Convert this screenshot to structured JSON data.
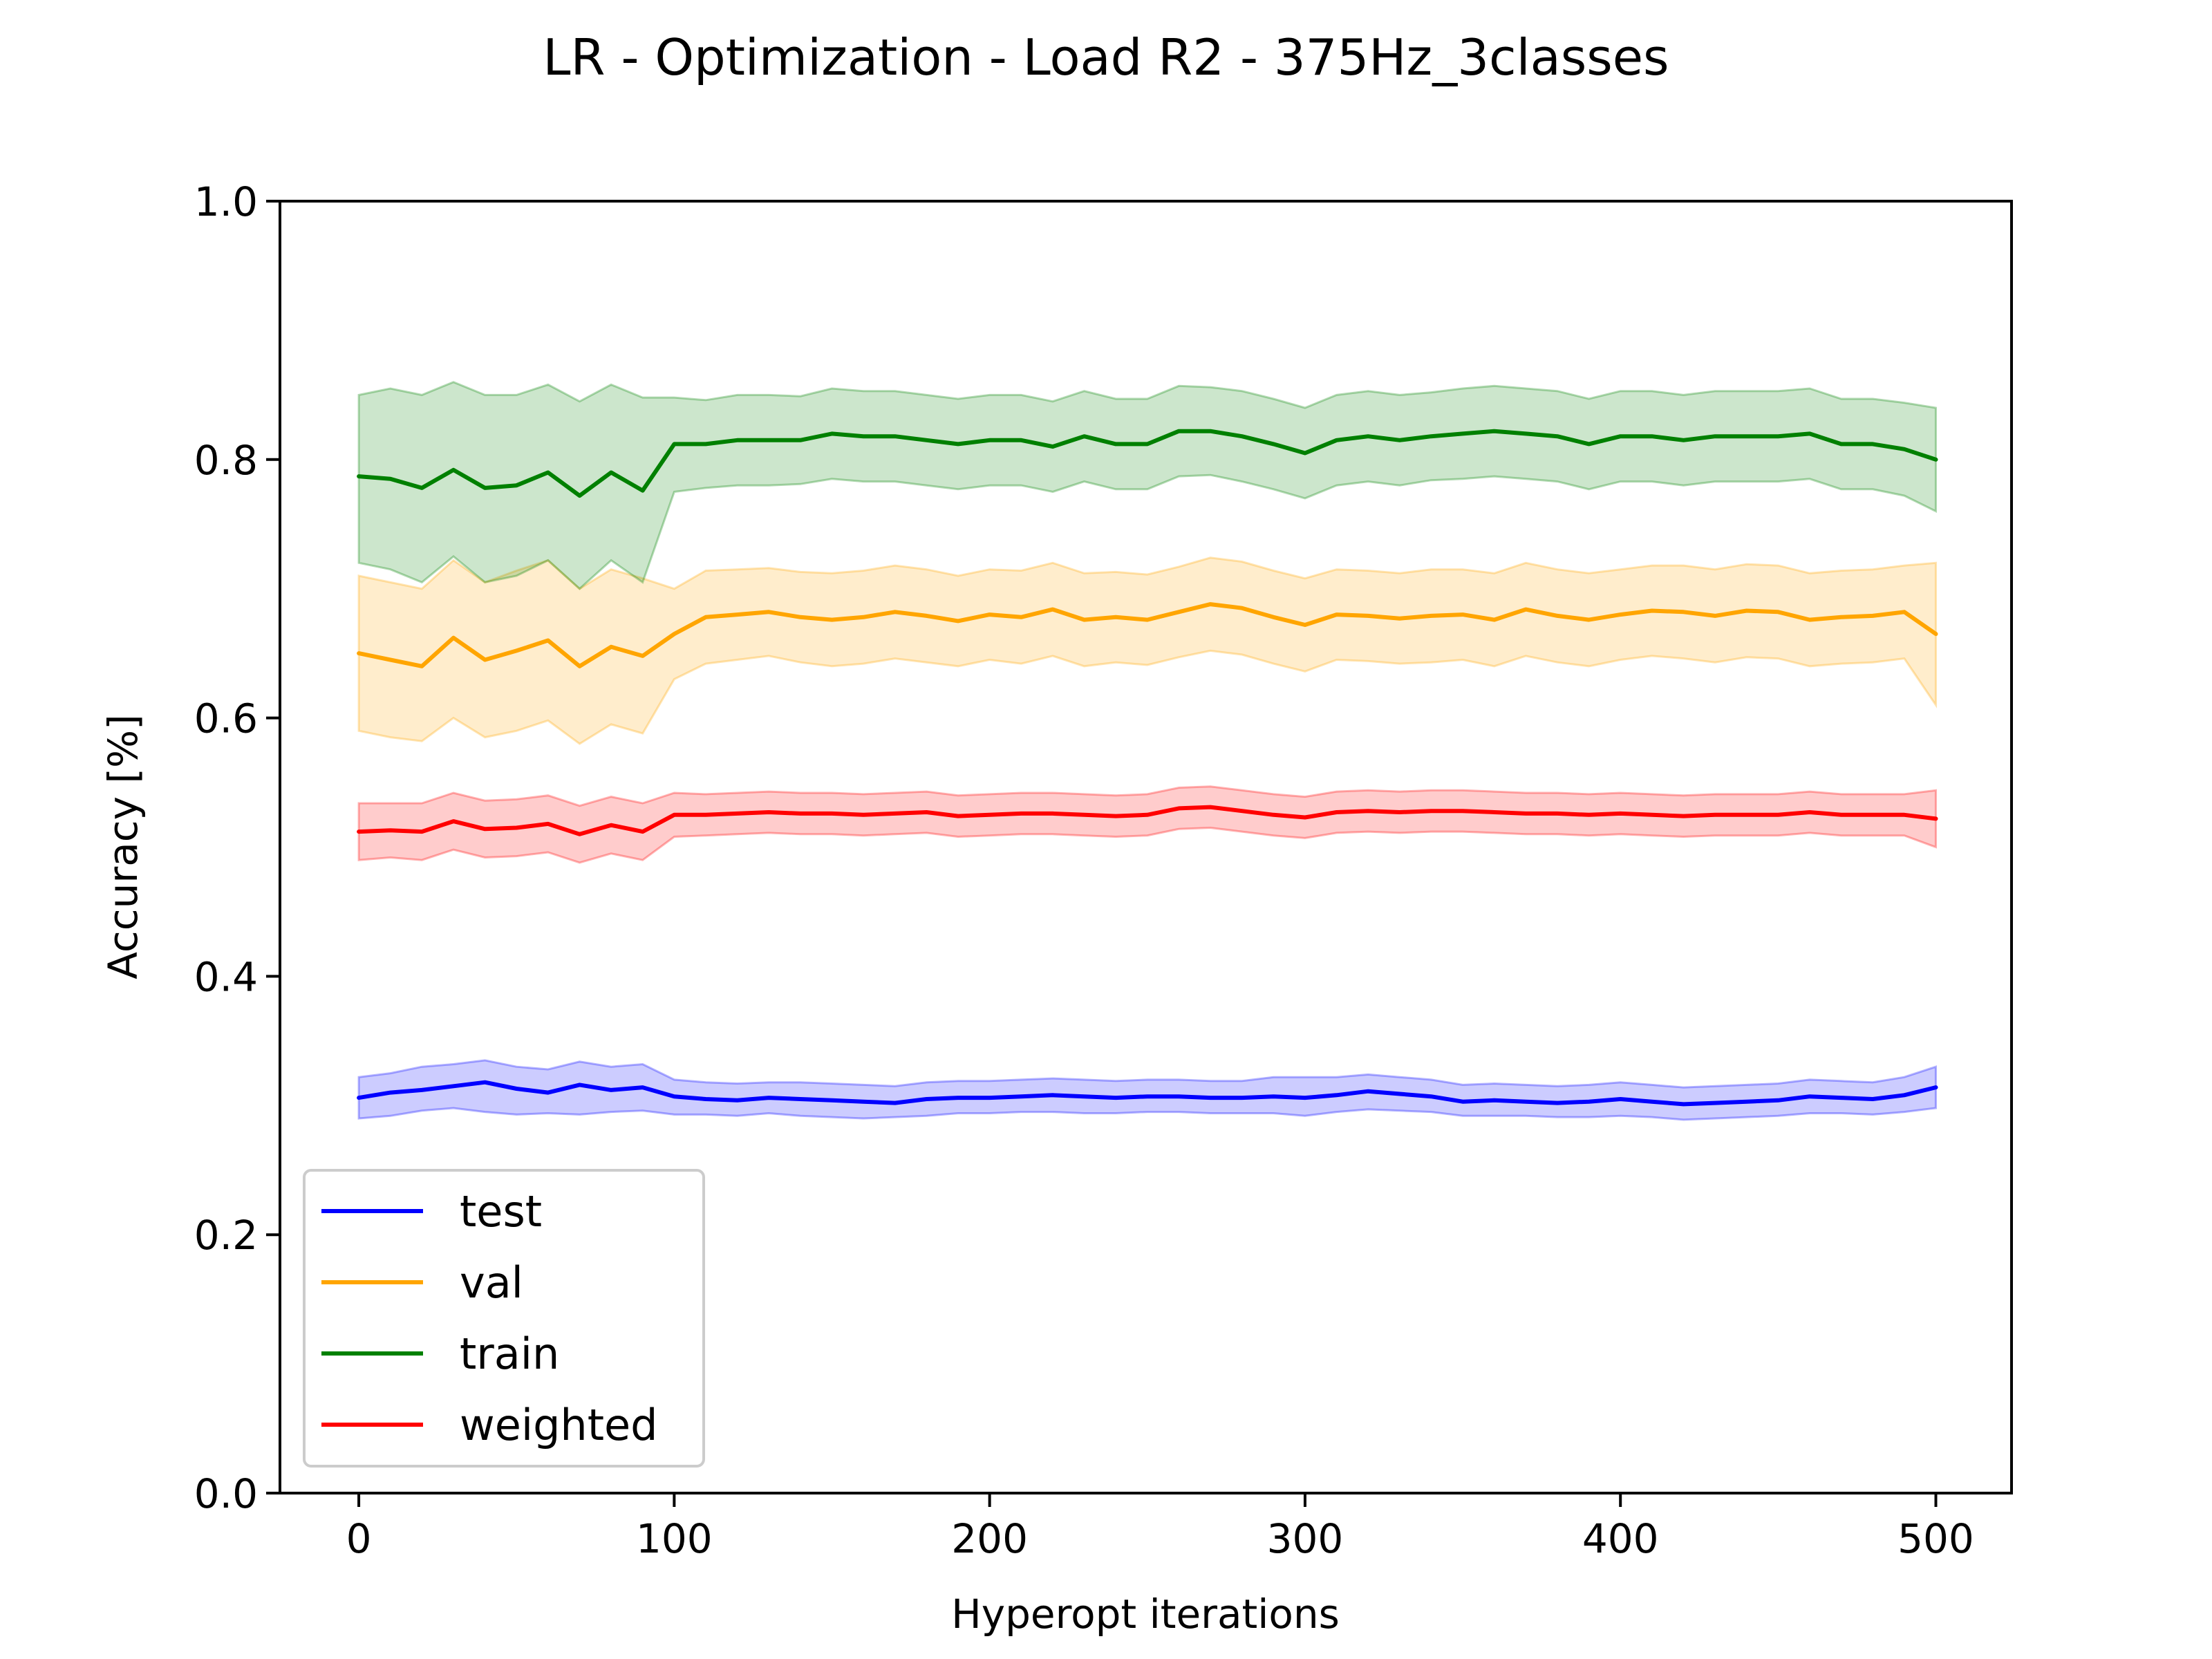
{
  "chart_data": {
    "type": "line",
    "title": "LR - Optimization - Load R2 - 375Hz_3classes",
    "xlabel": "Hyperopt iterations",
    "ylabel": "Accuracy [%]",
    "xlim": [
      -25,
      524
    ],
    "ylim": [
      0.0,
      1.0
    ],
    "xticks": [
      0,
      100,
      200,
      300,
      400,
      500
    ],
    "yticks": [
      0.0,
      0.2,
      0.4,
      0.6,
      0.8,
      1.0
    ],
    "xtick_labels": [
      "0",
      "100",
      "200",
      "300",
      "400",
      "500"
    ],
    "ytick_labels": [
      "0.0",
      "0.2",
      "0.4",
      "0.6",
      "0.8",
      "1.0"
    ],
    "grid": false,
    "legend_position": "lower-left",
    "x": [
      0,
      10,
      20,
      30,
      40,
      50,
      60,
      70,
      80,
      90,
      100,
      110,
      120,
      130,
      140,
      150,
      160,
      170,
      180,
      190,
      200,
      210,
      220,
      230,
      240,
      250,
      260,
      270,
      280,
      290,
      300,
      310,
      320,
      330,
      340,
      350,
      360,
      370,
      380,
      390,
      400,
      410,
      420,
      430,
      440,
      450,
      460,
      470,
      480,
      490,
      500
    ],
    "series": [
      {
        "name": "test",
        "color": "#0000ff",
        "values": [
          0.306,
          0.31,
          0.312,
          0.315,
          0.318,
          0.313,
          0.31,
          0.316,
          0.312,
          0.314,
          0.307,
          0.305,
          0.304,
          0.306,
          0.305,
          0.304,
          0.303,
          0.302,
          0.305,
          0.306,
          0.306,
          0.307,
          0.308,
          0.307,
          0.306,
          0.307,
          0.307,
          0.306,
          0.306,
          0.307,
          0.306,
          0.308,
          0.311,
          0.309,
          0.307,
          0.303,
          0.304,
          0.303,
          0.302,
          0.303,
          0.305,
          0.303,
          0.301,
          0.302,
          0.303,
          0.304,
          0.307,
          0.306,
          0.305,
          0.308,
          0.314
        ],
        "band_lower": [
          0.29,
          0.292,
          0.296,
          0.298,
          0.295,
          0.293,
          0.294,
          0.293,
          0.295,
          0.296,
          0.293,
          0.293,
          0.292,
          0.294,
          0.292,
          0.291,
          0.29,
          0.291,
          0.292,
          0.294,
          0.294,
          0.295,
          0.295,
          0.294,
          0.294,
          0.295,
          0.295,
          0.294,
          0.294,
          0.294,
          0.292,
          0.295,
          0.297,
          0.296,
          0.295,
          0.292,
          0.292,
          0.292,
          0.291,
          0.291,
          0.292,
          0.291,
          0.289,
          0.29,
          0.291,
          0.292,
          0.294,
          0.294,
          0.293,
          0.295,
          0.298
        ],
        "band_upper": [
          0.322,
          0.325,
          0.33,
          0.332,
          0.335,
          0.33,
          0.328,
          0.334,
          0.33,
          0.332,
          0.32,
          0.318,
          0.317,
          0.318,
          0.318,
          0.317,
          0.316,
          0.315,
          0.318,
          0.319,
          0.319,
          0.32,
          0.321,
          0.32,
          0.319,
          0.32,
          0.32,
          0.319,
          0.319,
          0.322,
          0.322,
          0.322,
          0.324,
          0.322,
          0.32,
          0.316,
          0.317,
          0.316,
          0.315,
          0.316,
          0.318,
          0.316,
          0.314,
          0.315,
          0.316,
          0.317,
          0.32,
          0.319,
          0.318,
          0.322,
          0.33
        ]
      },
      {
        "name": "val",
        "color": "#ffa500",
        "values": [
          0.65,
          0.645,
          0.64,
          0.662,
          0.645,
          0.652,
          0.66,
          0.64,
          0.655,
          0.648,
          0.665,
          0.678,
          0.68,
          0.682,
          0.678,
          0.676,
          0.678,
          0.682,
          0.679,
          0.675,
          0.68,
          0.678,
          0.684,
          0.676,
          0.678,
          0.676,
          0.682,
          0.688,
          0.685,
          0.678,
          0.672,
          0.68,
          0.679,
          0.677,
          0.679,
          0.68,
          0.676,
          0.684,
          0.679,
          0.676,
          0.68,
          0.683,
          0.682,
          0.679,
          0.683,
          0.682,
          0.676,
          0.678,
          0.679,
          0.682,
          0.665
        ],
        "band_lower": [
          0.59,
          0.585,
          0.582,
          0.6,
          0.585,
          0.59,
          0.598,
          0.58,
          0.595,
          0.588,
          0.63,
          0.642,
          0.645,
          0.648,
          0.643,
          0.64,
          0.642,
          0.646,
          0.643,
          0.64,
          0.645,
          0.642,
          0.648,
          0.64,
          0.643,
          0.641,
          0.647,
          0.652,
          0.649,
          0.642,
          0.636,
          0.645,
          0.644,
          0.642,
          0.643,
          0.645,
          0.64,
          0.648,
          0.643,
          0.64,
          0.645,
          0.648,
          0.646,
          0.643,
          0.647,
          0.646,
          0.64,
          0.642,
          0.643,
          0.646,
          0.61
        ],
        "band_upper": [
          0.71,
          0.705,
          0.7,
          0.722,
          0.705,
          0.714,
          0.722,
          0.7,
          0.715,
          0.708,
          0.7,
          0.714,
          0.715,
          0.716,
          0.713,
          0.712,
          0.714,
          0.718,
          0.715,
          0.71,
          0.715,
          0.714,
          0.72,
          0.712,
          0.713,
          0.711,
          0.717,
          0.724,
          0.721,
          0.714,
          0.708,
          0.715,
          0.714,
          0.712,
          0.715,
          0.715,
          0.712,
          0.72,
          0.715,
          0.712,
          0.715,
          0.718,
          0.718,
          0.715,
          0.719,
          0.718,
          0.712,
          0.714,
          0.715,
          0.718,
          0.72
        ]
      },
      {
        "name": "train",
        "color": "#008000",
        "values": [
          0.787,
          0.785,
          0.778,
          0.792,
          0.778,
          0.78,
          0.79,
          0.772,
          0.79,
          0.776,
          0.812,
          0.812,
          0.815,
          0.815,
          0.815,
          0.82,
          0.818,
          0.818,
          0.815,
          0.812,
          0.815,
          0.815,
          0.81,
          0.818,
          0.812,
          0.812,
          0.822,
          0.822,
          0.818,
          0.812,
          0.805,
          0.815,
          0.818,
          0.815,
          0.818,
          0.82,
          0.822,
          0.82,
          0.818,
          0.812,
          0.818,
          0.818,
          0.815,
          0.818,
          0.818,
          0.818,
          0.82,
          0.812,
          0.812,
          0.808,
          0.8
        ],
        "band_lower": [
          0.72,
          0.715,
          0.705,
          0.725,
          0.705,
          0.71,
          0.722,
          0.7,
          0.722,
          0.705,
          0.775,
          0.778,
          0.78,
          0.78,
          0.781,
          0.785,
          0.783,
          0.783,
          0.78,
          0.777,
          0.78,
          0.78,
          0.775,
          0.783,
          0.777,
          0.777,
          0.787,
          0.788,
          0.783,
          0.777,
          0.77,
          0.78,
          0.783,
          0.78,
          0.784,
          0.785,
          0.787,
          0.785,
          0.783,
          0.777,
          0.783,
          0.783,
          0.78,
          0.783,
          0.783,
          0.783,
          0.785,
          0.777,
          0.777,
          0.772,
          0.76
        ],
        "band_upper": [
          0.85,
          0.855,
          0.85,
          0.86,
          0.85,
          0.85,
          0.858,
          0.845,
          0.858,
          0.848,
          0.848,
          0.846,
          0.85,
          0.85,
          0.849,
          0.855,
          0.853,
          0.853,
          0.85,
          0.847,
          0.85,
          0.85,
          0.845,
          0.853,
          0.847,
          0.847,
          0.857,
          0.856,
          0.853,
          0.847,
          0.84,
          0.85,
          0.853,
          0.85,
          0.852,
          0.855,
          0.857,
          0.855,
          0.853,
          0.847,
          0.853,
          0.853,
          0.85,
          0.853,
          0.853,
          0.853,
          0.855,
          0.847,
          0.847,
          0.844,
          0.84
        ]
      },
      {
        "name": "weighted",
        "color": "#ff0000",
        "values": [
          0.512,
          0.513,
          0.512,
          0.52,
          0.514,
          0.515,
          0.518,
          0.51,
          0.517,
          0.512,
          0.525,
          0.525,
          0.526,
          0.527,
          0.526,
          0.526,
          0.525,
          0.526,
          0.527,
          0.524,
          0.525,
          0.526,
          0.526,
          0.525,
          0.524,
          0.525,
          0.53,
          0.531,
          0.528,
          0.525,
          0.523,
          0.527,
          0.528,
          0.527,
          0.528,
          0.528,
          0.527,
          0.526,
          0.526,
          0.525,
          0.526,
          0.525,
          0.524,
          0.525,
          0.525,
          0.525,
          0.527,
          0.525,
          0.525,
          0.525,
          0.522
        ],
        "band_lower": [
          0.49,
          0.492,
          0.49,
          0.498,
          0.492,
          0.493,
          0.496,
          0.488,
          0.495,
          0.49,
          0.508,
          0.509,
          0.51,
          0.511,
          0.51,
          0.51,
          0.509,
          0.51,
          0.511,
          0.508,
          0.509,
          0.51,
          0.51,
          0.509,
          0.508,
          0.509,
          0.514,
          0.515,
          0.512,
          0.509,
          0.507,
          0.511,
          0.512,
          0.511,
          0.512,
          0.512,
          0.511,
          0.51,
          0.51,
          0.509,
          0.51,
          0.509,
          0.508,
          0.509,
          0.509,
          0.509,
          0.511,
          0.509,
          0.509,
          0.509,
          0.5
        ],
        "band_upper": [
          0.534,
          0.534,
          0.534,
          0.542,
          0.536,
          0.537,
          0.54,
          0.532,
          0.539,
          0.534,
          0.542,
          0.541,
          0.542,
          0.543,
          0.542,
          0.542,
          0.541,
          0.542,
          0.543,
          0.54,
          0.541,
          0.542,
          0.542,
          0.541,
          0.54,
          0.541,
          0.546,
          0.547,
          0.544,
          0.541,
          0.539,
          0.543,
          0.544,
          0.543,
          0.544,
          0.544,
          0.543,
          0.542,
          0.542,
          0.541,
          0.542,
          0.541,
          0.54,
          0.541,
          0.541,
          0.541,
          0.543,
          0.541,
          0.541,
          0.541,
          0.544
        ]
      }
    ]
  }
}
